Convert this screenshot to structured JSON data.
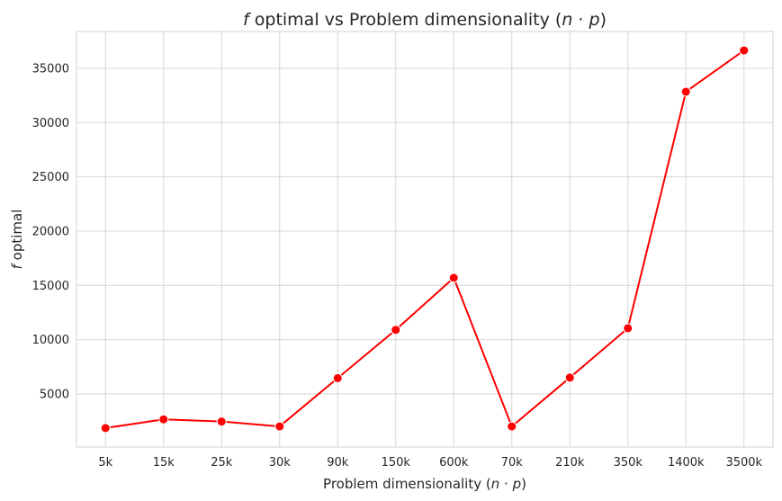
{
  "chart_data": {
    "type": "line",
    "title": {
      "f": "f",
      "rest": " optimal vs Problem dimensionality (",
      "n": "n",
      "dot": " · ",
      "p": "p",
      "close": ")"
    },
    "xlabel": {
      "rest": "Problem dimensionality (",
      "n": "n",
      "dot": " · ",
      "p": "p",
      "close": ")"
    },
    "ylabel": {
      "f": "f",
      "rest": " optimal"
    },
    "categories": [
      "5k",
      "15k",
      "25k",
      "30k",
      "90k",
      "150k",
      "600k",
      "70k",
      "210k",
      "350k",
      "1400k",
      "3500k"
    ],
    "series": [
      {
        "values": [
          1850,
          2650,
          2450,
          2000,
          6450,
          10900,
          15700,
          2000,
          6500,
          11050,
          32850,
          36650
        ],
        "color": "#ff0000"
      }
    ],
    "yticks": [
      5000,
      10000,
      15000,
      20000,
      25000,
      30000,
      35000
    ],
    "ylim": [
      100,
      38400
    ],
    "grid": true,
    "style": "whitegrid"
  }
}
